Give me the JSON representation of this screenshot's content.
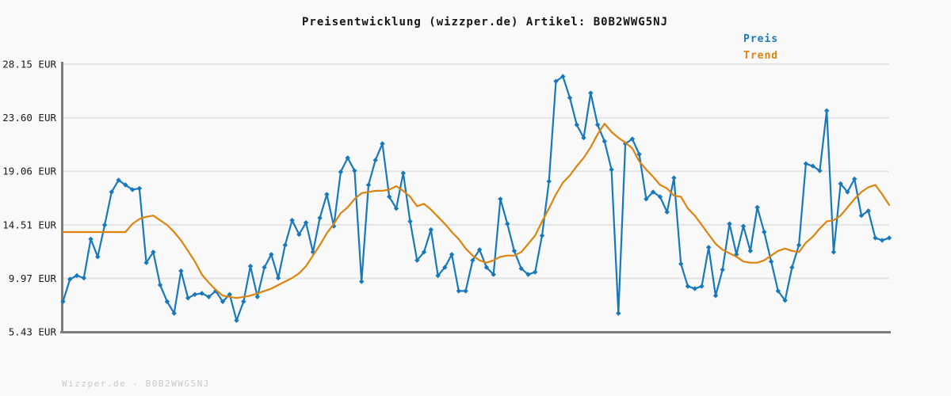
{
  "watermark": "Wizzper.de - B0B2WWG5NJ",
  "colors": {
    "background": "#f9f9f9",
    "gridline": "#e4e4e4",
    "axis": "#7c7c7c",
    "tick_text": "#1a1a1a",
    "watermark_text": "#c9c9c9"
  },
  "chart_data": {
    "type": "line",
    "title": "Preisentwicklung (wizzper.de) Artikel: B0B2WWG5NJ",
    "xlabel": "",
    "ylabel": "",
    "currency_unit": "EUR",
    "ylim": [
      5.43,
      28.15
    ],
    "yticks": [
      28.15,
      23.6,
      19.06,
      14.51,
      9.97,
      5.43
    ],
    "ytick_labels": [
      "28.15 EUR",
      "23.60 EUR",
      "19.06 EUR",
      "14.51 EUR",
      "9.97 EUR",
      "5.43 EUR"
    ],
    "xtick_labels": [],
    "grid": "horizontal-only",
    "legend_position": "top-right",
    "series": [
      {
        "name": "Preis",
        "color": "#1878bc",
        "marker": "diamond",
        "values": [
          8.0,
          9.9,
          10.2,
          10.0,
          13.3,
          11.8,
          14.5,
          17.3,
          18.3,
          17.9,
          17.5,
          17.6,
          11.3,
          12.2,
          9.4,
          8.0,
          7.0,
          10.6,
          8.3,
          8.6,
          8.7,
          8.4,
          8.9,
          8.0,
          8.6,
          6.4,
          8.0,
          11.0,
          8.4,
          10.9,
          12.0,
          10.0,
          12.8,
          14.9,
          13.7,
          14.7,
          12.2,
          15.1,
          17.1,
          14.4,
          19.0,
          20.2,
          19.1,
          9.7,
          17.9,
          20.0,
          21.4,
          16.9,
          15.9,
          18.9,
          14.8,
          11.5,
          12.2,
          14.1,
          10.2,
          10.9,
          12.0,
          8.9,
          8.9,
          11.5,
          12.4,
          10.9,
          10.3,
          16.7,
          14.6,
          12.3,
          10.8,
          10.3,
          10.5,
          13.6,
          18.2,
          26.7,
          27.1,
          25.3,
          23.0,
          21.9,
          25.7,
          23.0,
          21.6,
          19.2,
          7.0,
          21.4,
          21.8,
          20.5,
          16.7,
          17.3,
          16.9,
          15.6,
          18.5,
          11.2,
          9.3,
          9.1,
          9.3,
          12.6,
          8.5,
          10.7,
          14.6,
          12.0,
          14.4,
          12.3,
          16.0,
          13.9,
          11.4,
          8.9,
          8.1,
          10.9,
          12.8,
          19.7,
          19.5,
          19.1,
          24.2,
          12.2,
          18.0,
          17.3,
          18.4,
          15.3,
          15.7,
          13.4,
          13.2,
          13.4
        ]
      },
      {
        "name": "Trend",
        "color": "#dd830e",
        "marker": "none",
        "values": [
          13.9,
          13.9,
          13.9,
          13.9,
          13.9,
          13.9,
          13.9,
          13.9,
          13.9,
          13.9,
          14.6,
          15.0,
          15.2,
          15.3,
          14.9,
          14.5,
          13.9,
          13.2,
          12.3,
          11.4,
          10.3,
          9.6,
          9.0,
          8.5,
          8.4,
          8.3,
          8.4,
          8.5,
          8.7,
          8.9,
          9.1,
          9.4,
          9.7,
          10.0,
          10.4,
          11.0,
          11.9,
          12.8,
          13.8,
          14.6,
          15.5,
          16.0,
          16.7,
          17.2,
          17.3,
          17.4,
          17.4,
          17.5,
          17.8,
          17.4,
          16.9,
          16.1,
          16.3,
          15.8,
          15.2,
          14.6,
          13.9,
          13.3,
          12.5,
          11.9,
          11.5,
          11.3,
          11.5,
          11.8,
          11.9,
          11.9,
          12.2,
          12.9,
          13.6,
          14.8,
          15.9,
          17.1,
          18.1,
          18.7,
          19.5,
          20.2,
          21.1,
          22.2,
          23.1,
          22.4,
          21.9,
          21.5,
          21.0,
          19.9,
          19.2,
          18.6,
          17.9,
          17.6,
          17.0,
          16.9,
          15.9,
          15.3,
          14.5,
          13.7,
          12.9,
          12.4,
          12.1,
          11.8,
          11.4,
          11.3,
          11.3,
          11.5,
          11.9,
          12.3,
          12.5,
          12.3,
          12.2,
          13.0,
          13.5,
          14.2,
          14.8,
          14.9,
          15.3,
          16.0,
          16.7,
          17.3,
          17.7,
          17.9,
          17.1,
          16.2
        ]
      }
    ]
  }
}
